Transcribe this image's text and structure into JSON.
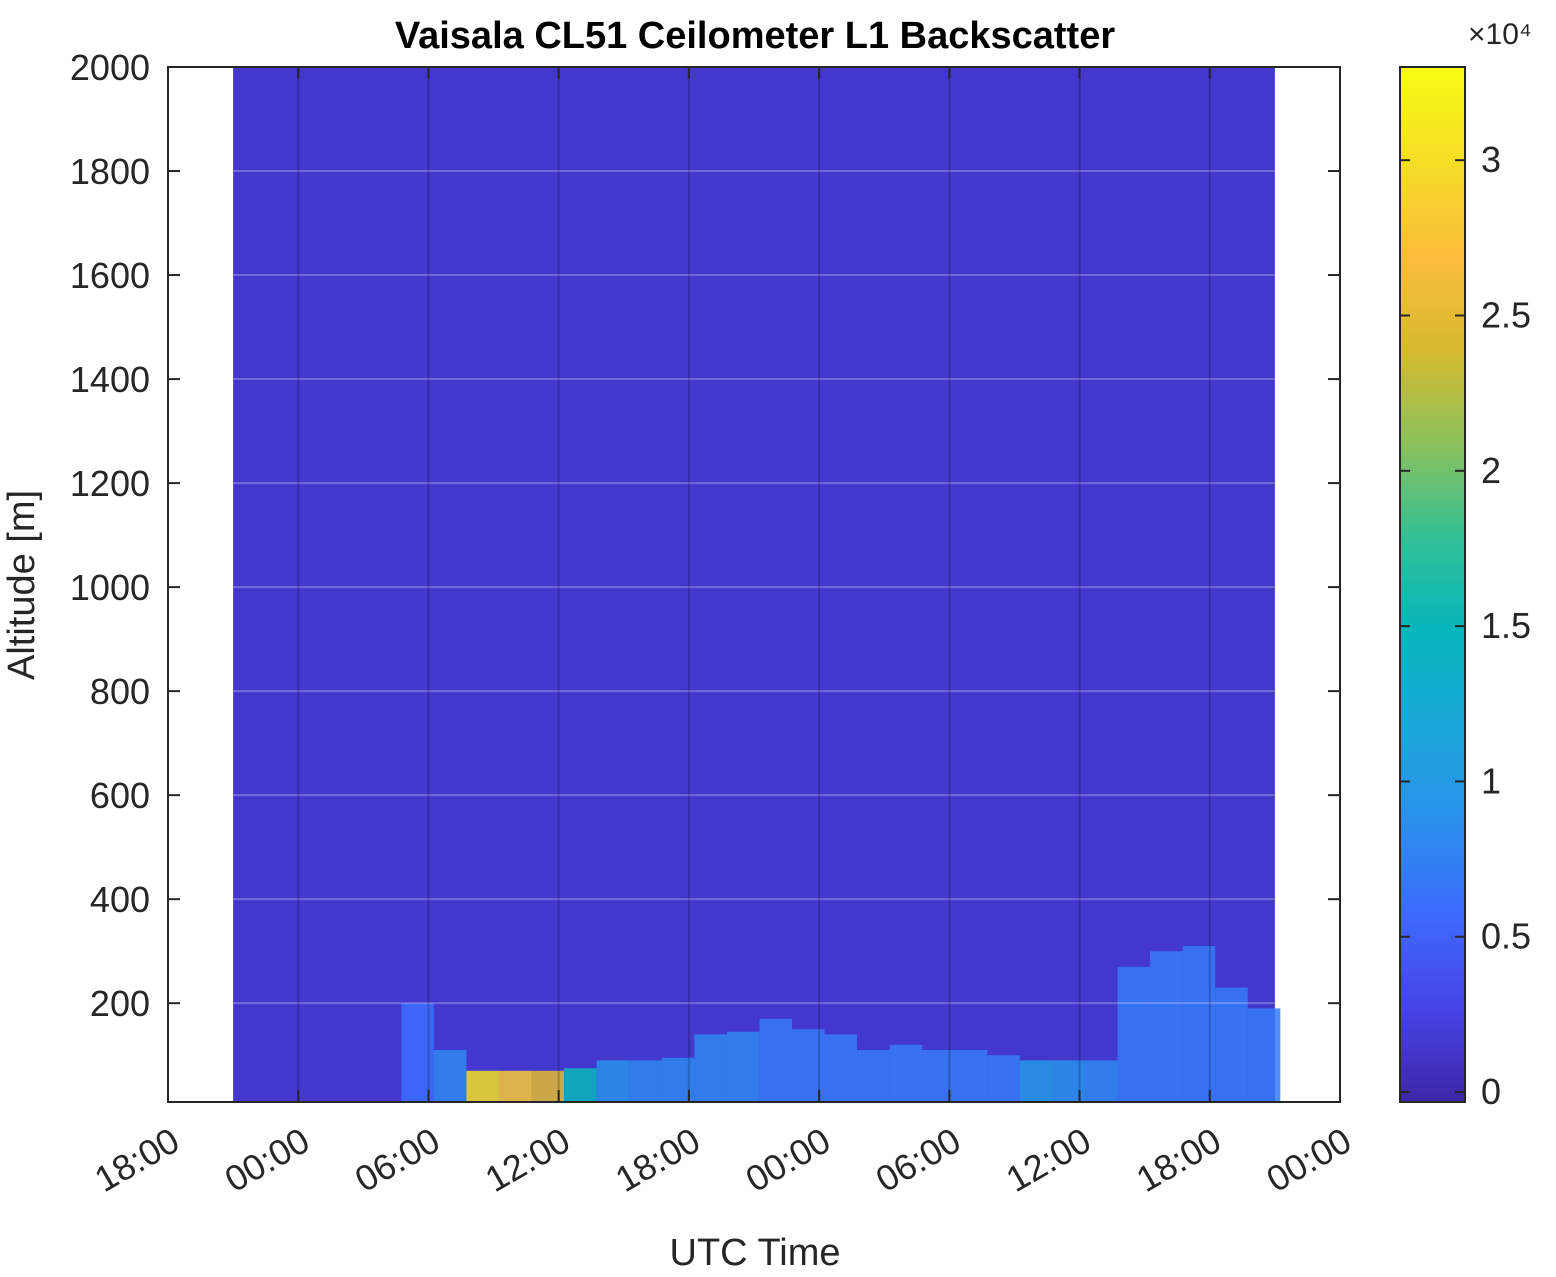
{
  "chart_data": {
    "type": "heatmap",
    "title": "Vaisala CL51 Ceilometer L1 Backscatter",
    "x_label": "UTC Time",
    "y_label": "Altitude [m]",
    "xlim": [
      0,
      54
    ],
    "xticks": [
      {
        "value": 0,
        "label": "18:00"
      },
      {
        "value": 6,
        "label": "00:00"
      },
      {
        "value": 12,
        "label": "06:00"
      },
      {
        "value": 18,
        "label": "12:00"
      },
      {
        "value": 24,
        "label": "18:00"
      },
      {
        "value": 30,
        "label": "00:00"
      },
      {
        "value": 36,
        "label": "06:00"
      },
      {
        "value": 42,
        "label": "12:00"
      },
      {
        "value": 48,
        "label": "18:00"
      },
      {
        "value": 54,
        "label": "00:00"
      }
    ],
    "ylim": [
      10,
      2000
    ],
    "yticks": [
      200,
      400,
      600,
      800,
      1000,
      1200,
      1400,
      1600,
      1800,
      2000
    ],
    "grid": true,
    "background": {
      "x": [
        3,
        51
      ],
      "value": 1500
    },
    "x": [
      11.5,
      13,
      14.5,
      16,
      17.5,
      19,
      20.5,
      22,
      23.5,
      25,
      26.5,
      28,
      29.5,
      31,
      32.5,
      34,
      35.5,
      37,
      38.5,
      40,
      41.5,
      43,
      44.5,
      46,
      47.5,
      49,
      50.5
    ],
    "layer_top": [
      200,
      110,
      70,
      70,
      70,
      75,
      90,
      90,
      95,
      140,
      145,
      170,
      150,
      140,
      110,
      120,
      110,
      110,
      100,
      90,
      90,
      90,
      270,
      300,
      310,
      230,
      190
    ],
    "layer_intensity": [
      6000,
      8000,
      30000,
      28000,
      25000,
      15000,
      9000,
      8000,
      8000,
      8000,
      8000,
      7000,
      7000,
      7000,
      7000,
      7000,
      7000,
      7000,
      7000,
      10000,
      9000,
      8000,
      7000,
      7000,
      7000,
      7000,
      7000
    ],
    "clim": [
      -320,
      33000
    ],
    "cticks": [
      {
        "value": 0,
        "label": "0"
      },
      {
        "value": 5000,
        "label": "0.5"
      },
      {
        "value": 10000,
        "label": "1"
      },
      {
        "value": 15000,
        "label": "1.5"
      },
      {
        "value": 20000,
        "label": "2"
      },
      {
        "value": 25000,
        "label": "2.5"
      },
      {
        "value": 30000,
        "label": "3"
      }
    ],
    "colorbar_multiplier": "×10⁴",
    "colormap": [
      "#3e26a8",
      "#4743e6",
      "#3d6bfd",
      "#2a90ec",
      "#1ba7d9",
      "#05b6bc",
      "#33c095",
      "#8cc15c",
      "#d6ba2e",
      "#fdbd3c",
      "#f5de26",
      "#f9fb15"
    ]
  }
}
